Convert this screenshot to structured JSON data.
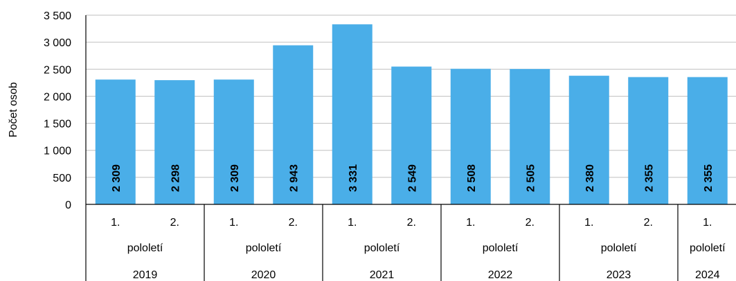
{
  "chart_data": {
    "type": "bar",
    "ylabel": "Počet osob",
    "xlabel": "",
    "ylim": [
      0,
      3500
    ],
    "yticks": [
      0,
      500,
      1000,
      1500,
      2000,
      2500,
      3000,
      3500
    ],
    "ytick_labels": [
      "0",
      "500",
      "1 000",
      "1 500",
      "2 000",
      "2 500",
      "3 000",
      "3 500"
    ],
    "grid": true,
    "legend": false,
    "bar_color": "#4aaee8",
    "categories": [
      "1.",
      "2.",
      "1.",
      "2.",
      "1.",
      "2.",
      "1.",
      "2.",
      "1.",
      "2.",
      "1."
    ],
    "groups": [
      {
        "label": "pololetí",
        "year": "2019",
        "count": 2
      },
      {
        "label": "pololetí",
        "year": "2020",
        "count": 2
      },
      {
        "label": "pololetí",
        "year": "2021",
        "count": 2
      },
      {
        "label": "pololetí",
        "year": "2022",
        "count": 2
      },
      {
        "label": "pololetí",
        "year": "2023",
        "count": 2
      },
      {
        "label": "pololetí",
        "year": "2024",
        "count": 1
      }
    ],
    "values": [
      2309,
      2298,
      2309,
      2943,
      3331,
      2549,
      2508,
      2505,
      2380,
      2355,
      2355
    ],
    "data_labels": [
      "2 309",
      "2 298",
      "2 309",
      "2 943",
      "3 331",
      "2 549",
      "2 508",
      "2 505",
      "2 380",
      "2 355",
      "2 355"
    ]
  }
}
